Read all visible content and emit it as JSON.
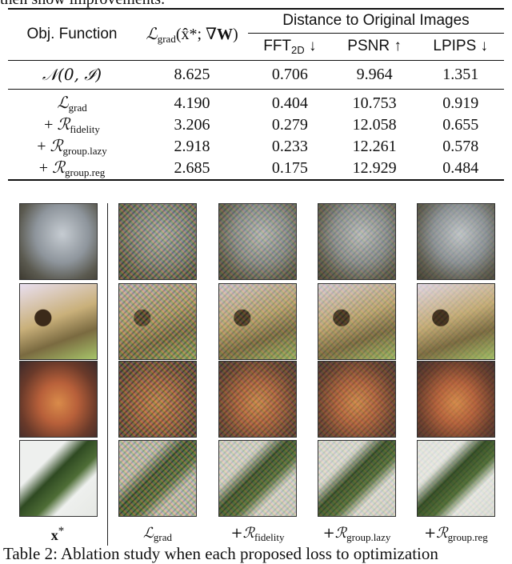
{
  "cut_top_text": "then show improvements.",
  "table": {
    "header": {
      "obj_function": "Obj. Function",
      "grad_col": "L_grad(x̂*; ∇W)",
      "distance_group": "Distance to Original Images",
      "metric_fft": "FFT",
      "metric_fft_sub": "2D",
      "metric_fft_arrow": "↓",
      "metric_psnr": "PSNR ↑",
      "metric_lpips": "LPIPS ↓"
    },
    "baseline": {
      "label": "𝒩(0, ℐ)",
      "grad": "8.625",
      "fft": "0.706",
      "psnr": "9.964",
      "lpips": "1.351"
    },
    "rows": [
      {
        "prefix": "",
        "script": "ℒ",
        "sub": "grad",
        "grad": "4.190",
        "fft": "0.404",
        "psnr": "10.753",
        "lpips": "0.919"
      },
      {
        "prefix": "+ ",
        "script": "ℛ",
        "sub": "fidelity",
        "grad": "3.206",
        "fft": "0.279",
        "psnr": "12.058",
        "lpips": "0.655"
      },
      {
        "prefix": "+ ",
        "script": "ℛ",
        "sub": "group.lazy",
        "grad": "2.918",
        "fft": "0.233",
        "psnr": "12.261",
        "lpips": "0.578"
      },
      {
        "prefix": "+ ",
        "script": "ℛ",
        "sub": "group.reg",
        "grad": "2.685",
        "fft": "0.175",
        "psnr": "12.929",
        "lpips": "0.484"
      }
    ]
  },
  "columns": [
    {
      "label_main": "x",
      "label_sup": "*"
    },
    {
      "label_main": "ℒ",
      "label_sub": "grad"
    },
    {
      "label_main": "+ℛ",
      "label_sub": "fidelity"
    },
    {
      "label_main": "+ℛ",
      "label_sub": "group.lazy"
    },
    {
      "label_main": "+ℛ",
      "label_sub": "group.reg"
    }
  ],
  "image_rows": [
    "shell",
    "bee",
    "sandwich",
    "cucumber"
  ],
  "colors": {
    "shell": "#8a8e92",
    "bee": "#b49a5c",
    "sandwich": "#b8603a",
    "cucumber": "#3a5a2a"
  },
  "caption": "Table 2: Ablation study when each proposed loss to optimization"
}
